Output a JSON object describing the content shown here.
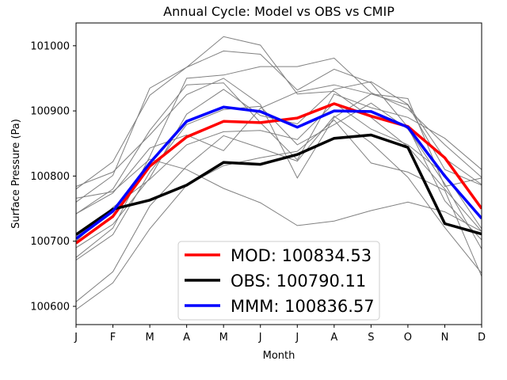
{
  "chart_data": {
    "type": "line",
    "title": "Annual Cycle: Model vs OBS vs CMIP",
    "xlabel": "Month",
    "ylabel": "Surface Pressure (Pa)",
    "categories": [
      "J",
      "F",
      "M",
      "A",
      "M",
      "J",
      "J",
      "A",
      "S",
      "O",
      "N",
      "D"
    ],
    "ylim": [
      100572,
      101035
    ],
    "yticks": [
      100600,
      100700,
      100800,
      100900,
      101000
    ],
    "grid": false,
    "legend_position": "lower center",
    "series": [
      {
        "name": "MOD",
        "legend_label": "MOD: 100834.53",
        "color": "#ff0000",
        "width": 3.5,
        "values": [
          100697,
          100738,
          100815,
          100860,
          100884,
          100882,
          100889,
          100911,
          100892,
          100876,
          100828,
          100750
        ]
      },
      {
        "name": "OBS",
        "legend_label": "OBS: 100790.11",
        "color": "#000000",
        "width": 3.5,
        "values": [
          100710,
          100749,
          100763,
          100786,
          100821,
          100818,
          100833,
          100858,
          100863,
          100844,
          100727,
          100711
        ]
      },
      {
        "name": "MMM",
        "legend_label": "MMM: 100836.57",
        "color": "#0000ff",
        "width": 3.5,
        "values": [
          100704,
          100746,
          100820,
          100884,
          100906,
          100899,
          100875,
          100900,
          100899,
          100875,
          100800,
          100735
        ]
      }
    ],
    "background_series": {
      "color": "#808080",
      "width": 1,
      "lines": [
        [
          100780,
          100822,
          100924,
          100967,
          101014,
          101001,
          100926,
          100930,
          100890,
          100845,
          100780,
          100715
        ],
        [
          100760,
          100801,
          100935,
          100967,
          100992,
          100987,
          100932,
          100964,
          100943,
          100875,
          100762,
          100702
        ],
        [
          100742,
          100780,
          100870,
          100940,
          100943,
          100882,
          100825,
          100926,
          100905,
          100890,
          100858,
          100810
        ],
        [
          100675,
          100720,
          100830,
          100950,
          100955,
          100968,
          100968,
          100981,
          100928,
          100903,
          100848,
          100798
        ],
        [
          100690,
          100726,
          100797,
          100895,
          100933,
          100893,
          100880,
          100933,
          100945,
          100910,
          100827,
          100787
        ],
        [
          100671,
          100710,
          100806,
          100879,
          100902,
          100907,
          100848,
          100879,
          100912,
          100872,
          100788,
          100688
        ],
        [
          100700,
          100752,
          100795,
          100848,
          100868,
          100870,
          100856,
          100912,
          100872,
          100848,
          100803,
          100719
        ],
        [
          100784,
          100806,
          100863,
          100925,
          100950,
          100910,
          100797,
          100890,
          100926,
          100919,
          100784,
          100797
        ],
        [
          100766,
          100776,
          100826,
          100810,
          100781,
          100759,
          100724,
          100731,
          100747,
          100760,
          100745,
          100715
        ],
        [
          100607,
          100653,
          100754,
          100815,
          100862,
          100843,
          100823,
          100892,
          100851,
          100798,
          100721,
          100651
        ],
        [
          100595,
          100636,
          100719,
          100786,
          100816,
          100828,
          100838,
          100886,
          100820,
          100806,
          100778,
          100646
        ],
        [
          100742,
          100774,
          100843,
          100863,
          100839,
          100904,
          100929,
          100940,
          100926,
          100909,
          100810,
          100786
        ]
      ]
    }
  }
}
